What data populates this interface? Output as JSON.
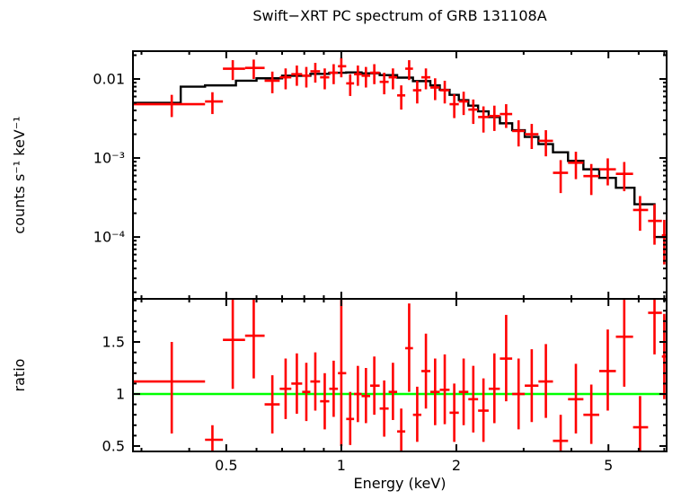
{
  "title": "Swift−XRT PC spectrum of GRB 131108A",
  "chart_data": {
    "type": "line",
    "title": "Swift−XRT PC spectrum of GRB 131108A",
    "xlabel": "Energy (keV)",
    "x_scale": "log",
    "x_range": [
      0.285,
      7.1
    ],
    "x_major_ticks": [
      0.5,
      1,
      2,
      5
    ],
    "x_major_tick_labels": [
      "0.5",
      "1",
      "2",
      "5"
    ],
    "x_minor_ticks": [
      0.3,
      0.4,
      0.6,
      0.7,
      0.8,
      0.9,
      3,
      4,
      6,
      7
    ],
    "legend": "none",
    "grid": "off",
    "colors": {
      "data": "#ff0000",
      "model": "#000000",
      "reference_line": "#00ff00",
      "frame": "#000000"
    },
    "panels": [
      {
        "name": "spectrum",
        "ylabel": "counts s⁻¹ keV⁻¹",
        "y_scale": "log",
        "y_range": [
          1.65e-05,
          0.0225
        ],
        "y_major_ticks": [
          0.01,
          0.001,
          0.0001
        ],
        "y_major_tick_labels": [
          "0.01",
          "10⁻³",
          "10⁻⁴"
        ],
        "model_step": {
          "edges": [
            0.285,
            0.38,
            0.44,
            0.53,
            0.6,
            0.7,
            0.83,
            0.93,
            1.03,
            1.13,
            1.26,
            1.4,
            1.54,
            1.71,
            1.81,
            1.92,
            2.03,
            2.15,
            2.28,
            2.43,
            2.6,
            2.8,
            3.02,
            3.28,
            3.58,
            3.92,
            4.3,
            4.73,
            5.23,
            5.85,
            6.6,
            7.1
          ],
          "values": [
            0.005,
            0.008,
            0.0083,
            0.0095,
            0.0102,
            0.011,
            0.0116,
            0.012,
            0.0121,
            0.0118,
            0.0112,
            0.0104,
            0.0094,
            0.0083,
            0.0073,
            0.0063,
            0.0054,
            0.0046,
            0.0039,
            0.0033,
            0.00275,
            0.00225,
            0.00185,
            0.0015,
            0.00118,
            0.00092,
            0.00072,
            0.00056,
            0.00042,
            0.00026,
            0.0001
          ]
        },
        "points": [
          [
            0.285,
            0.36,
            0.44,
            0.0048,
            0.0033,
            0.0063
          ],
          [
            0.44,
            0.46,
            0.49,
            0.0052,
            0.0036,
            0.0068
          ],
          [
            0.49,
            0.52,
            0.56,
            0.0135,
            0.0097,
            0.0173
          ],
          [
            0.56,
            0.59,
            0.63,
            0.0138,
            0.01,
            0.0176
          ],
          [
            0.63,
            0.66,
            0.69,
            0.0095,
            0.0066,
            0.0124
          ],
          [
            0.69,
            0.715,
            0.74,
            0.0105,
            0.0074,
            0.0136
          ],
          [
            0.74,
            0.765,
            0.79,
            0.0115,
            0.0082,
            0.0148
          ],
          [
            0.79,
            0.81,
            0.83,
            0.011,
            0.0078,
            0.0142
          ],
          [
            0.83,
            0.855,
            0.88,
            0.0125,
            0.009,
            0.016
          ],
          [
            0.88,
            0.905,
            0.93,
            0.0105,
            0.0074,
            0.0136
          ],
          [
            0.93,
            0.955,
            0.98,
            0.012,
            0.0086,
            0.0154
          ],
          [
            0.98,
            1.0,
            1.03,
            0.0145,
            0.0105,
            0.0185
          ],
          [
            1.03,
            1.055,
            1.08,
            0.0088,
            0.0061,
            0.0115
          ],
          [
            1.08,
            1.105,
            1.13,
            0.0115,
            0.0082,
            0.0148
          ],
          [
            1.13,
            1.16,
            1.19,
            0.011,
            0.0078,
            0.0142
          ],
          [
            1.19,
            1.22,
            1.26,
            0.012,
            0.0086,
            0.0154
          ],
          [
            1.26,
            1.295,
            1.33,
            0.0092,
            0.0064,
            0.012
          ],
          [
            1.33,
            1.365,
            1.4,
            0.0105,
            0.0074,
            0.0136
          ],
          [
            1.4,
            1.435,
            1.47,
            0.0062,
            0.0041,
            0.0083
          ],
          [
            1.47,
            1.505,
            1.54,
            0.0135,
            0.0097,
            0.0173
          ],
          [
            1.54,
            1.58,
            1.62,
            0.0072,
            0.0049,
            0.0095
          ],
          [
            1.62,
            1.665,
            1.71,
            0.0105,
            0.0074,
            0.0136
          ],
          [
            1.71,
            1.76,
            1.81,
            0.0078,
            0.0054,
            0.0102
          ],
          [
            1.81,
            1.865,
            1.92,
            0.0072,
            0.0049,
            0.0095
          ],
          [
            1.92,
            1.975,
            2.03,
            0.0048,
            0.0032,
            0.0064
          ],
          [
            2.03,
            2.09,
            2.15,
            0.0052,
            0.0035,
            0.0069
          ],
          [
            2.15,
            2.215,
            2.28,
            0.0041,
            0.0027,
            0.0055
          ],
          [
            2.28,
            2.355,
            2.43,
            0.0033,
            0.0021,
            0.0045
          ],
          [
            2.43,
            2.515,
            2.6,
            0.0034,
            0.0022,
            0.0046
          ],
          [
            2.6,
            2.7,
            2.8,
            0.0036,
            0.0024,
            0.0048
          ],
          [
            2.8,
            2.91,
            3.02,
            0.0022,
            0.0014,
            0.003
          ],
          [
            3.02,
            3.15,
            3.28,
            0.002,
            0.0013,
            0.0027
          ],
          [
            3.28,
            3.43,
            3.58,
            0.00165,
            0.00105,
            0.00225
          ],
          [
            3.58,
            3.75,
            3.92,
            0.00065,
            0.00036,
            0.00094
          ],
          [
            3.92,
            4.11,
            4.3,
            0.00087,
            0.00054,
            0.0012
          ],
          [
            4.3,
            4.51,
            4.73,
            0.00059,
            0.00034,
            0.00084
          ],
          [
            4.73,
            4.98,
            5.23,
            0.00072,
            0.00045,
            0.00099
          ],
          [
            5.23,
            5.5,
            5.8,
            0.00063,
            0.00038,
            0.00089
          ],
          [
            5.8,
            6.05,
            6.35,
            0.00022,
            0.00012,
            0.00033
          ],
          [
            6.35,
            6.6,
            6.9,
            0.00016,
            8e-05,
            0.00026
          ],
          [
            6.9,
            7.0,
            7.1,
            0.000105,
            4.5e-05,
            0.000165
          ]
        ]
      },
      {
        "name": "ratio",
        "ylabel": "ratio",
        "y_scale": "linear",
        "y_range": [
          0.448,
          1.914
        ],
        "y_major_ticks": [
          0.5,
          1,
          1.5
        ],
        "y_major_tick_labels": [
          "0.5",
          "1",
          "1.5"
        ],
        "reference_line": 1.0,
        "points": [
          [
            0.285,
            0.36,
            0.44,
            1.12,
            0.62,
            1.5
          ],
          [
            0.44,
            0.46,
            0.49,
            0.56,
            0.44,
            0.7
          ],
          [
            0.49,
            0.52,
            0.56,
            1.52,
            1.05,
            1.95
          ],
          [
            0.56,
            0.59,
            0.63,
            1.56,
            1.15,
            1.95
          ],
          [
            0.63,
            0.66,
            0.69,
            0.9,
            0.62,
            1.18
          ],
          [
            0.69,
            0.715,
            0.74,
            1.05,
            0.76,
            1.34
          ],
          [
            0.74,
            0.765,
            0.79,
            1.1,
            0.81,
            1.39
          ],
          [
            0.79,
            0.81,
            0.83,
            1.02,
            0.74,
            1.3
          ],
          [
            0.83,
            0.855,
            0.88,
            1.12,
            0.84,
            1.4
          ],
          [
            0.88,
            0.905,
            0.93,
            0.93,
            0.66,
            1.2
          ],
          [
            0.93,
            0.955,
            0.98,
            1.05,
            0.78,
            1.32
          ],
          [
            0.98,
            1.0,
            1.03,
            1.2,
            0.5,
            1.95
          ],
          [
            1.03,
            1.055,
            1.08,
            0.76,
            0.51,
            1.02
          ],
          [
            1.08,
            1.105,
            1.13,
            1.0,
            0.73,
            1.27
          ],
          [
            1.13,
            1.16,
            1.19,
            0.98,
            0.72,
            1.25
          ],
          [
            1.19,
            1.22,
            1.26,
            1.08,
            0.8,
            1.36
          ],
          [
            1.26,
            1.295,
            1.33,
            0.86,
            0.59,
            1.13
          ],
          [
            1.33,
            1.365,
            1.4,
            1.02,
            0.75,
            1.3
          ],
          [
            1.4,
            1.435,
            1.47,
            0.64,
            0.43,
            0.86
          ],
          [
            1.47,
            1.505,
            1.54,
            1.44,
            1.02,
            1.87
          ],
          [
            1.54,
            1.58,
            1.62,
            0.8,
            0.54,
            1.07
          ],
          [
            1.62,
            1.665,
            1.71,
            1.22,
            0.86,
            1.58
          ],
          [
            1.71,
            1.76,
            1.81,
            1.02,
            0.7,
            1.34
          ],
          [
            1.81,
            1.865,
            1.92,
            1.04,
            0.71,
            1.38
          ],
          [
            1.92,
            1.975,
            2.03,
            0.82,
            0.54,
            1.1
          ],
          [
            2.03,
            2.09,
            2.15,
            1.02,
            0.7,
            1.34
          ],
          [
            2.15,
            2.215,
            2.28,
            0.95,
            0.63,
            1.27
          ],
          [
            2.28,
            2.355,
            2.43,
            0.84,
            0.54,
            1.15
          ],
          [
            2.43,
            2.515,
            2.6,
            1.05,
            0.72,
            1.39
          ],
          [
            2.6,
            2.7,
            2.8,
            1.34,
            0.93,
            1.76
          ],
          [
            2.8,
            2.91,
            3.02,
            1.0,
            0.66,
            1.34
          ],
          [
            3.02,
            3.15,
            3.28,
            1.08,
            0.73,
            1.43
          ],
          [
            3.28,
            3.43,
            3.58,
            1.12,
            0.77,
            1.48
          ],
          [
            3.58,
            3.75,
            3.92,
            0.55,
            0.3,
            0.8
          ],
          [
            3.92,
            4.11,
            4.3,
            0.95,
            0.62,
            1.29
          ],
          [
            4.3,
            4.51,
            4.73,
            0.8,
            0.52,
            1.09
          ],
          [
            4.73,
            4.98,
            5.23,
            1.22,
            0.84,
            1.62
          ],
          [
            5.23,
            5.5,
            5.8,
            1.55,
            1.07,
            1.95
          ],
          [
            5.8,
            6.05,
            6.35,
            0.68,
            0.45,
            0.98
          ],
          [
            6.35,
            6.6,
            6.9,
            1.78,
            1.38,
            2.0
          ],
          [
            6.9,
            7.0,
            7.1,
            1.36,
            0.95,
            1.77
          ]
        ]
      }
    ]
  }
}
